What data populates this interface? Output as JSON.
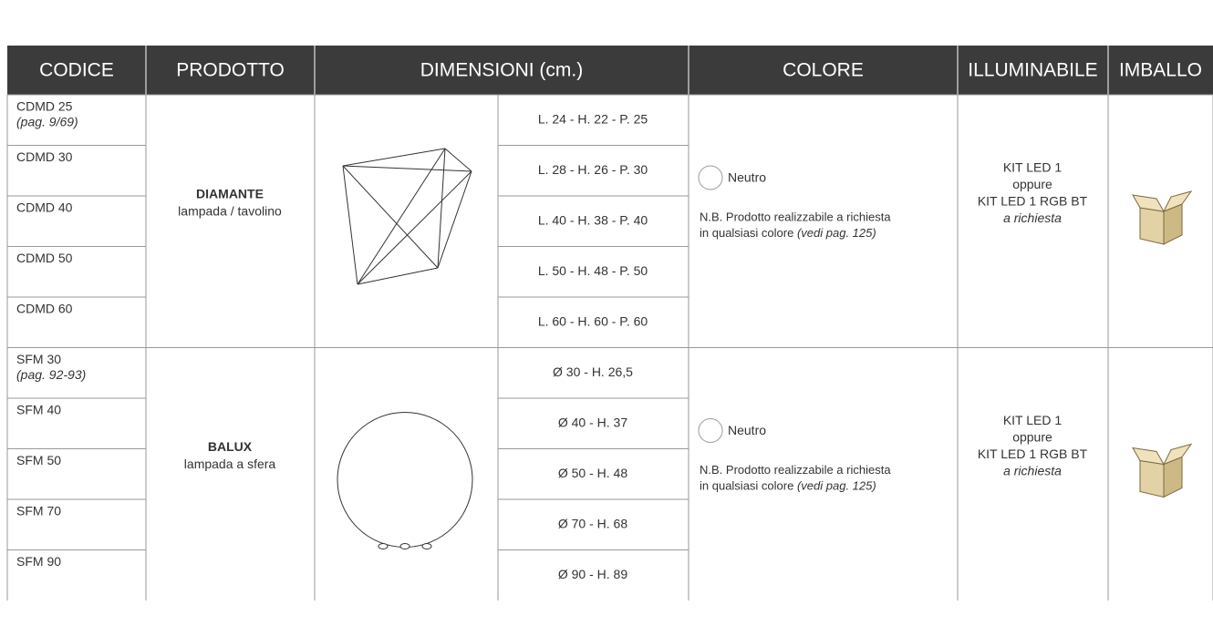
{
  "header": {
    "columns": [
      "CODICE",
      "PRODOTTO",
      "DIMENSIONI (cm.)",
      "COLORE",
      "ILLUMINABILE",
      "IMBALLO"
    ]
  },
  "groups": [
    {
      "rows": [
        {
          "code": "CDMD 25",
          "page": "(pag. 9/69)"
        },
        {
          "code": "CDMD 30"
        },
        {
          "code": "CDMD 40"
        },
        {
          "code": "CDMD 50"
        },
        {
          "code": "CDMD 60"
        }
      ],
      "product": {
        "name": "DIAMANTE",
        "subtitle": "lampada / tavolino"
      },
      "dimensions": [
        "L. 24 - H. 22 - P. 25",
        "L. 28 - H. 26 - P. 30",
        "L. 40 - H. 38 - P. 40",
        "L. 50 - H. 48 - P. 50",
        "L. 60 - H. 60 - P. 60"
      ],
      "color": {
        "name": "Neutro",
        "note": [
          "N.B. Prodotto realizzabile a richiesta",
          "in qualsiasi colore"
        ],
        "note_ref": "(vedi pag. 125)"
      },
      "illuminable": [
        "KIT LED 1",
        "oppure",
        "KIT LED 1 RGB BT",
        "a richiesta"
      ]
    },
    {
      "rows": [
        {
          "code": "SFM 30",
          "page": "(pag. 92-93)"
        },
        {
          "code": "SFM 40"
        },
        {
          "code": "SFM 50"
        },
        {
          "code": "SFM 70"
        },
        {
          "code": "SFM 90"
        }
      ],
      "product": {
        "name": "BALUX",
        "subtitle": "lampada a sfera"
      },
      "dimensions": [
        "Ø 30 - H. 26,5",
        "Ø 40 - H. 37",
        "Ø 50 - H. 48",
        "Ø 70 - H. 68",
        "Ø 90 - H. 89"
      ],
      "color": {
        "name": "Neutro",
        "note": [
          "N.B. Prodotto realizzabile a richiesta",
          "in qualsiasi colore"
        ],
        "note_ref": "(vedi pag. 125)"
      },
      "illuminable": [
        "KIT LED 1",
        "oppure",
        "KIT LED 1 RGB BT",
        "a richiesta"
      ]
    }
  ]
}
